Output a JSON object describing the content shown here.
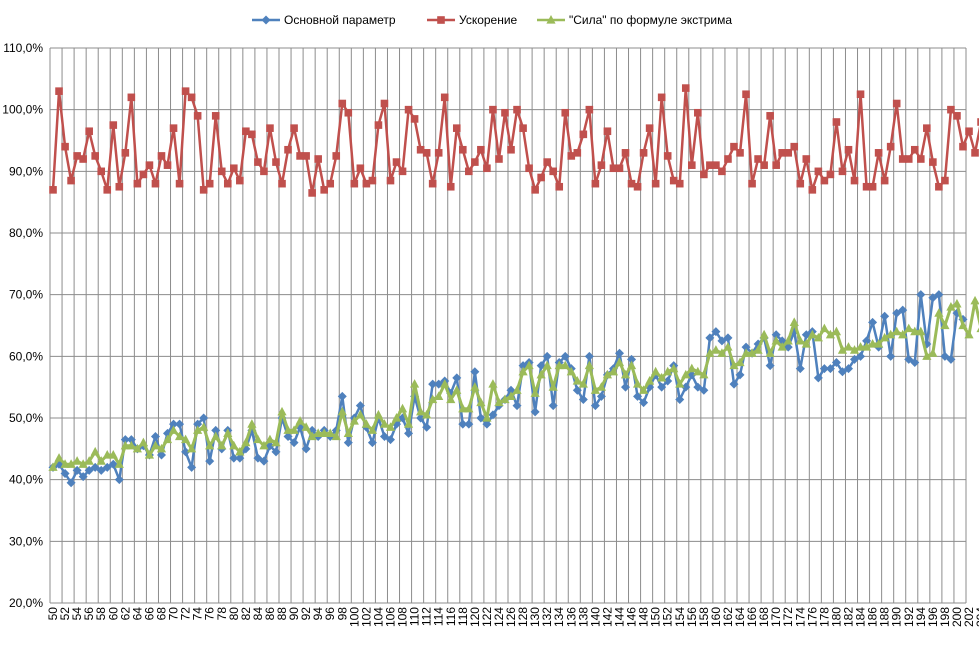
{
  "chart_data": {
    "type": "line",
    "x_start": 50,
    "x_end": 207,
    "x_tick_labels": [
      "50",
      "52",
      "54",
      "56",
      "58",
      "60",
      "62",
      "64",
      "66",
      "68",
      "70",
      "72",
      "74",
      "76",
      "78",
      "80",
      "82",
      "84",
      "86",
      "88",
      "90",
      "92",
      "94",
      "96",
      "98",
      "100",
      "102",
      "104",
      "106",
      "108",
      "110",
      "112",
      "114",
      "116",
      "118",
      "120",
      "122",
      "124",
      "126",
      "128",
      "130",
      "132",
      "134",
      "136",
      "138",
      "140",
      "142",
      "144",
      "146",
      "148",
      "150",
      "152",
      "154",
      "156",
      "158",
      "160",
      "162",
      "164",
      "166",
      "168",
      "170",
      "172",
      "174",
      "176",
      "178",
      "180",
      "182",
      "184",
      "186",
      "188",
      "190",
      "192",
      "194",
      "196",
      "198",
      "200",
      "202",
      "204",
      "206"
    ],
    "y_tick_labels": [
      "110,0%",
      "100,0%",
      "90,0%",
      "80,0%",
      "70,0%",
      "60,0%",
      "50,0%",
      "40,0%",
      "30,0%",
      "20,0%"
    ],
    "ylim": [
      20,
      110
    ],
    "grid": true,
    "legend_position": "top",
    "series": [
      {
        "name": "Основной параметр",
        "color": "#4F81BD",
        "marker": "diamond",
        "values": [
          42.0,
          42.5,
          41.0,
          39.5,
          41.5,
          40.5,
          41.5,
          42.0,
          41.5,
          42.0,
          42.5,
          40.0,
          46.5,
          46.5,
          45.0,
          45.5,
          44.0,
          47.0,
          44.0,
          47.5,
          49.0,
          49.0,
          44.5,
          42.0,
          49.0,
          50.0,
          43.0,
          48.0,
          45.0,
          48.0,
          43.5,
          43.5,
          45.0,
          48.0,
          43.5,
          43.0,
          45.5,
          44.5,
          50.0,
          47.0,
          46.0,
          48.5,
          45.0,
          48.0,
          47.0,
          48.0,
          47.0,
          48.0,
          53.5,
          46.0,
          50.0,
          52.0,
          48.5,
          46.0,
          50.0,
          47.0,
          46.5,
          49.0,
          50.0,
          47.5,
          53.5,
          50.0,
          48.5,
          55.5,
          55.5,
          56.0,
          54.0,
          56.5,
          49.0,
          49.0,
          57.5,
          50.0,
          49.0,
          50.5,
          52.0,
          53.0,
          54.5,
          52.0,
          58.5,
          59.0,
          51.0,
          58.5,
          60.0,
          52.0,
          59.0,
          60.0,
          58.0,
          54.5,
          53.0,
          60.0,
          52.0,
          53.5,
          57.0,
          58.0,
          60.5,
          55.0,
          59.5,
          53.5,
          52.5,
          55.0,
          57.0,
          55.0,
          56.0,
          58.5,
          53.0,
          55.0,
          57.0,
          55.0,
          54.5,
          63.0,
          64.0,
          62.5,
          63.0,
          55.5,
          57.0,
          61.5,
          60.5,
          62.0,
          63.0,
          58.5,
          63.5,
          62.5,
          61.5,
          64.0,
          58.0,
          63.5,
          64.0,
          56.5,
          58.0,
          58.0,
          59.0,
          57.5,
          58.0,
          59.5,
          60.0,
          62.5,
          65.5,
          61.5,
          66.5,
          60.0,
          67.0,
          67.5,
          59.5,
          59.0,
          70.0,
          62.0,
          69.5,
          70.0,
          60.0,
          59.5,
          67.0,
          66.0
        ]
      },
      {
        "name": "Ускорение",
        "color": "#C0504D",
        "marker": "square",
        "values": [
          87.0,
          103.0,
          94.0,
          88.5,
          92.5,
          92.0,
          96.5,
          92.5,
          90.0,
          87.0,
          97.5,
          87.5,
          93.0,
          102.0,
          88.0,
          89.5,
          91.0,
          88.0,
          92.5,
          91.0,
          97.0,
          88.0,
          103.0,
          102.0,
          99.0,
          87.0,
          88.0,
          99.0,
          90.0,
          88.0,
          90.5,
          88.5,
          96.5,
          96.0,
          91.5,
          90.0,
          97.0,
          91.5,
          88.0,
          93.5,
          97.0,
          92.5,
          92.5,
          86.5,
          92.0,
          87.0,
          88.0,
          92.5,
          101.0,
          99.5,
          88.0,
          90.5,
          88.0,
          88.5,
          97.5,
          101.0,
          88.5,
          91.5,
          90.0,
          100.0,
          98.5,
          93.5,
          93.0,
          88.0,
          93.0,
          102.0,
          87.5,
          97.0,
          93.5,
          90.0,
          91.5,
          93.5,
          90.5,
          100.0,
          92.0,
          99.5,
          93.5,
          100.0,
          97.0,
          90.5,
          87.0,
          89.0,
          91.5,
          90.0,
          87.5,
          99.5,
          92.5,
          93.0,
          96.0,
          100.0,
          88.0,
          91.0,
          96.5,
          90.5,
          90.5,
          93.0,
          88.0,
          87.5,
          93.0,
          97.0,
          88.0,
          102.0,
          92.5,
          88.5,
          88.0,
          103.5,
          91.0,
          99.5,
          89.5,
          91.0,
          91.0,
          90.0,
          92.0,
          94.0,
          93.0,
          102.5,
          88.0,
          92.0,
          91.0,
          99.0,
          91.0,
          93.0,
          93.0,
          94.0,
          88.0,
          92.0,
          87.0,
          90.0,
          88.5,
          89.5,
          98.0,
          90.0,
          93.5,
          88.5,
          102.5,
          87.5,
          87.5,
          93.0,
          88.5,
          94.0,
          101.0,
          92.0,
          92.0,
          93.5,
          92.0,
          97.0,
          91.5,
          87.5,
          88.5,
          100.0,
          99.0,
          94.0,
          96.5,
          93.0,
          98.0,
          89.0,
          89.0
        ]
      },
      {
        "name": "\"Сила\" по формуле экстрима",
        "color": "#9BBB59",
        "marker": "triangle",
        "values": [
          42.0,
          43.5,
          42.5,
          42.5,
          43.0,
          42.5,
          43.0,
          44.5,
          43.0,
          44.0,
          44.0,
          42.5,
          45.5,
          45.5,
          45.0,
          46.0,
          44.0,
          45.5,
          45.0,
          46.5,
          48.0,
          47.0,
          46.5,
          45.0,
          48.0,
          48.5,
          45.5,
          47.0,
          45.5,
          47.5,
          45.5,
          44.5,
          46.0,
          49.0,
          46.5,
          45.5,
          46.5,
          46.0,
          51.0,
          48.0,
          48.0,
          49.5,
          48.5,
          47.0,
          47.5,
          47.5,
          47.5,
          47.0,
          51.0,
          47.5,
          49.5,
          50.5,
          49.0,
          48.0,
          50.5,
          49.0,
          48.5,
          50.0,
          51.5,
          49.0,
          55.5,
          51.0,
          50.5,
          53.0,
          53.5,
          55.5,
          53.0,
          54.5,
          51.5,
          51.5,
          55.0,
          52.5,
          50.0,
          55.5,
          52.5,
          53.0,
          53.5,
          54.5,
          57.5,
          58.5,
          54.0,
          57.0,
          58.5,
          55.0,
          58.5,
          58.5,
          57.5,
          56.0,
          55.5,
          58.5,
          54.5,
          55.0,
          57.0,
          57.5,
          59.0,
          57.0,
          58.5,
          55.5,
          54.5,
          56.0,
          57.5,
          56.5,
          57.5,
          58.0,
          55.5,
          57.0,
          58.0,
          57.5,
          57.0,
          60.5,
          61.0,
          60.5,
          61.5,
          58.5,
          59.0,
          60.5,
          60.5,
          61.0,
          63.5,
          60.5,
          62.5,
          61.5,
          62.5,
          65.5,
          62.5,
          62.0,
          63.5,
          63.0,
          64.5,
          63.5,
          64.0,
          61.0,
          61.5,
          61.0,
          61.5,
          61.5,
          62.0,
          62.0,
          63.0,
          63.5,
          64.0,
          63.5,
          64.5,
          64.0,
          64.0,
          60.0,
          60.5,
          67.0,
          65.0,
          68.0,
          68.5,
          65.0,
          63.5,
          69.0,
          64.5
        ]
      }
    ]
  }
}
